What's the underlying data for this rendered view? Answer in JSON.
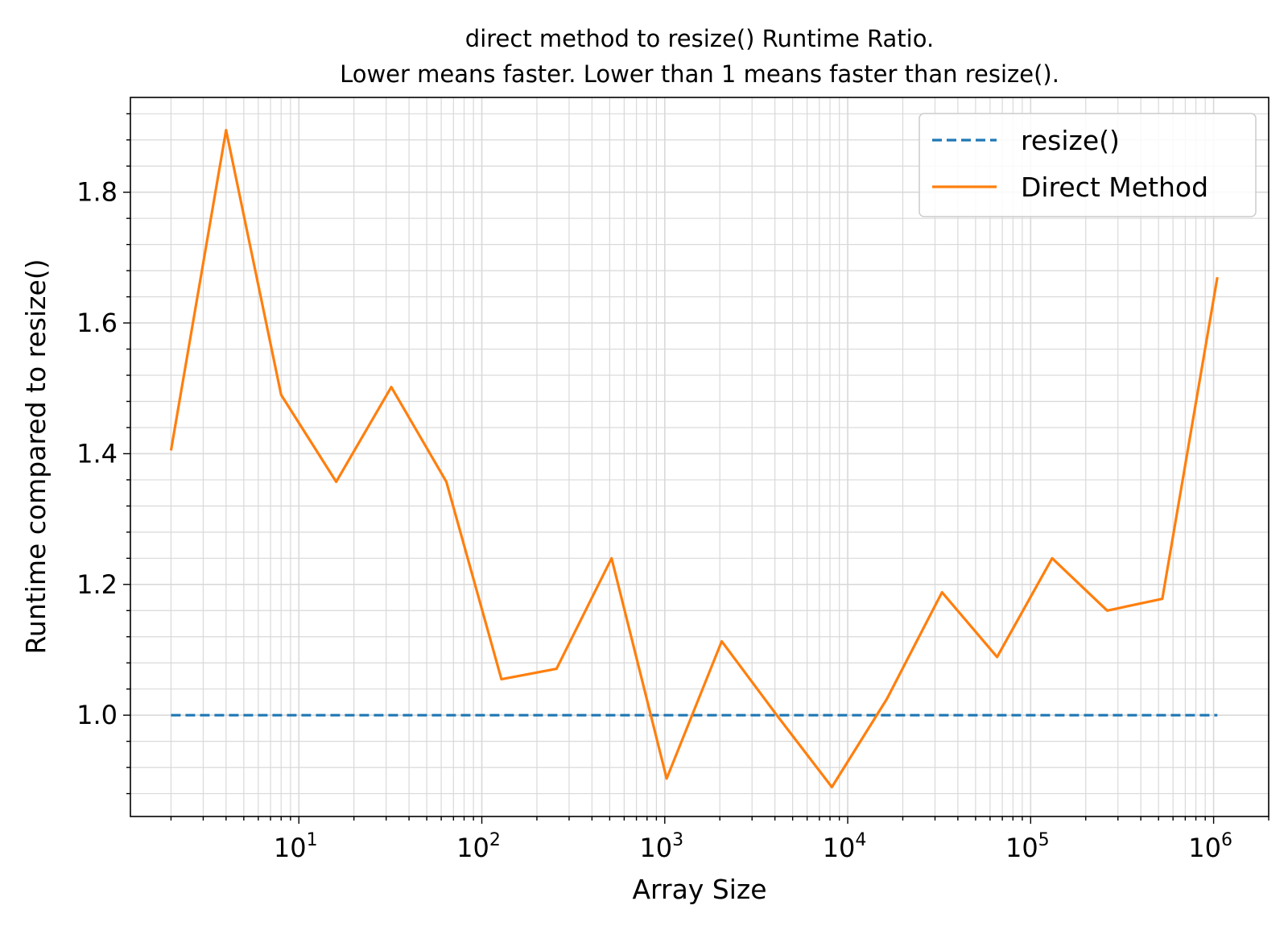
{
  "chart_data": {
    "type": "line",
    "title_line1": "direct method to resize() Runtime Ratio.",
    "title_line2": "Lower means faster. Lower than 1 means faster than resize().",
    "xlabel": "Array Size",
    "ylabel": "Runtime compared to resize()",
    "x_scale": "log",
    "xlim": [
      1.2,
      2000000
    ],
    "ylim": [
      0.845,
      1.945
    ],
    "x_ticks": [
      {
        "base": "10",
        "exp": "1",
        "value": 10
      },
      {
        "base": "10",
        "exp": "2",
        "value": 100
      },
      {
        "base": "10",
        "exp": "3",
        "value": 1000
      },
      {
        "base": "10",
        "exp": "4",
        "value": 10000
      },
      {
        "base": "10",
        "exp": "5",
        "value": 100000
      },
      {
        "base": "10",
        "exp": "6",
        "value": 1000000
      }
    ],
    "y_ticks": [
      {
        "label": "1.0",
        "value": 1.0
      },
      {
        "label": "1.2",
        "value": 1.2
      },
      {
        "label": "1.4",
        "value": 1.4
      },
      {
        "label": "1.6",
        "value": 1.6
      },
      {
        "label": "1.8",
        "value": 1.8
      }
    ],
    "grid": true,
    "legend_position": "top-right",
    "x": [
      2,
      4,
      8,
      16,
      32,
      64,
      128,
      256,
      512,
      1024,
      2048,
      4096,
      8192,
      16384,
      32768,
      65536,
      131072,
      262144,
      524288,
      1048576
    ],
    "series": [
      {
        "name": "resize()",
        "color": "#1f77b4",
        "style": "dashed",
        "values": [
          1,
          1,
          1,
          1,
          1,
          1,
          1,
          1,
          1,
          1,
          1,
          1,
          1,
          1,
          1,
          1,
          1,
          1,
          1,
          1
        ]
      },
      {
        "name": "Direct Method",
        "color": "#ff7f0e",
        "style": "solid",
        "values": [
          1.405,
          1.895,
          1.49,
          1.357,
          1.502,
          1.357,
          1.055,
          1.071,
          1.24,
          0.903,
          1.113,
          1.0,
          0.89,
          1.025,
          1.188,
          1.089,
          1.24,
          1.16,
          1.178,
          1.67
        ]
      }
    ]
  }
}
